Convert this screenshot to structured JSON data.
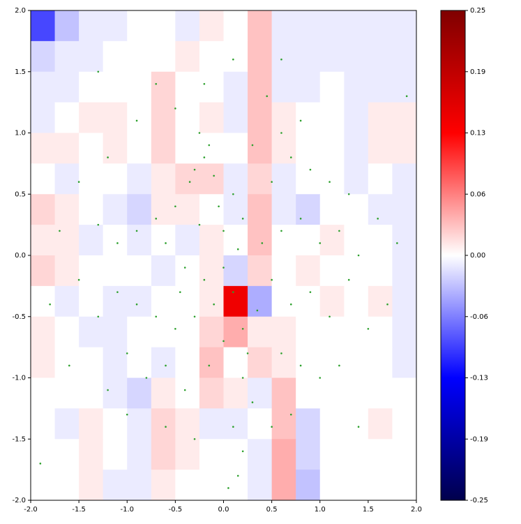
{
  "chart_data": {
    "type": "heatmap",
    "xlim": [
      -2,
      2
    ],
    "ylim": [
      -2,
      2
    ],
    "xticks": [
      {
        "value": -2,
        "label": "-2.0"
      },
      -1.5,
      {
        "value": -1,
        "label": "-1.0"
      },
      -0.5,
      {
        "value": 0,
        "label": "0.0"
      },
      0.5,
      {
        "value": 1,
        "label": "1.0"
      },
      1.5,
      {
        "value": 2,
        "label": "2.0"
      }
    ],
    "yticks": [
      {
        "value": -2,
        "label": "-2.0"
      },
      -1.5,
      {
        "value": -1,
        "label": "-1.0"
      },
      -0.5,
      {
        "value": 0,
        "label": "0.0"
      },
      0.5,
      {
        "value": 1,
        "label": "1.0"
      },
      1.5,
      {
        "value": 2,
        "label": "2.0"
      }
    ],
    "zlim": [
      -0.25,
      0.25
    ],
    "zticks": [
      0.25,
      {
        "value": 0.1875,
        "label": "0.19"
      },
      {
        "value": 0.125,
        "label": "0.13"
      },
      {
        "value": 0.0625,
        "label": "0.06"
      },
      {
        "value": 0,
        "label": "0.00"
      },
      {
        "value": -0.0625,
        "label": "-0.06"
      },
      {
        "value": -0.125,
        "label": "-0.13"
      },
      {
        "value": -0.1875,
        "label": "-0.19"
      },
      -0.25
    ],
    "x": [
      -1.875,
      -1.625,
      -1.375,
      -1.125,
      -0.875,
      -0.625,
      -0.375,
      -0.125,
      0.125,
      0.375,
      0.625,
      0.875,
      1.125,
      1.375,
      1.625,
      1.875
    ],
    "y": [
      1.875,
      1.625,
      1.375,
      1.125,
      0.875,
      0.625,
      0.375,
      0.125,
      -0.125,
      -0.375,
      -0.625,
      -0.875,
      -1.125,
      -1.375,
      -1.625,
      -1.875
    ],
    "z": [
      [
        -0.09,
        -0.03,
        -0.01,
        -0.01,
        0,
        0,
        -0.01,
        0.01,
        0,
        0.03,
        -0.01,
        -0.01,
        -0.01,
        -0.01,
        -0.01,
        -0.01
      ],
      [
        -0.02,
        -0.01,
        -0.01,
        0,
        0,
        0,
        0.01,
        0,
        0,
        0.03,
        -0.01,
        -0.01,
        -0.01,
        -0.01,
        -0.01,
        -0.01
      ],
      [
        -0.01,
        -0.01,
        0,
        0,
        0,
        0.02,
        0,
        0,
        -0.01,
        0.03,
        -0.01,
        -0.01,
        0,
        -0.01,
        -0.01,
        -0.01
      ],
      [
        -0.01,
        0,
        0.01,
        0.01,
        0,
        0.02,
        0,
        0.01,
        -0.01,
        0.03,
        0.01,
        0,
        0,
        -0.01,
        0.01,
        0.01
      ],
      [
        0.01,
        0.01,
        0,
        0.01,
        0,
        0.02,
        0,
        0,
        0,
        0.03,
        0.01,
        0,
        0,
        -0.01,
        0.01,
        0.01
      ],
      [
        0,
        -0.01,
        0,
        0,
        -0.01,
        0.01,
        0.02,
        0.02,
        -0.01,
        0.02,
        -0.01,
        0,
        0,
        -0.01,
        0,
        -0.01
      ],
      [
        0.02,
        0.01,
        0,
        -0.01,
        -0.02,
        0.01,
        0.01,
        0,
        -0.01,
        0.03,
        -0.01,
        -0.02,
        0,
        0,
        -0.01,
        -0.01
      ],
      [
        0.01,
        0.01,
        -0.01,
        0,
        -0.01,
        0,
        -0.01,
        0.01,
        0,
        0.03,
        0,
        0,
        0.01,
        0,
        0,
        -0.01
      ],
      [
        0.02,
        0.01,
        0,
        0,
        0,
        -0.01,
        0,
        0.01,
        -0.02,
        0.02,
        0,
        0.01,
        0,
        0,
        0,
        -0.01
      ],
      [
        0,
        -0.01,
        0,
        -0.01,
        -0.01,
        0,
        0,
        0.01,
        0.14,
        -0.04,
        0,
        0,
        0.01,
        0,
        0.01,
        -0.01
      ],
      [
        0.01,
        0,
        -0.01,
        -0.01,
        0,
        0,
        0,
        0.02,
        0.04,
        0.01,
        0.01,
        0,
        0,
        0,
        0,
        -0.01
      ],
      [
        0.01,
        0,
        0,
        -0.01,
        0,
        -0.01,
        0,
        0.03,
        0,
        0.02,
        0.01,
        0,
        0,
        0,
        0,
        -0.01
      ],
      [
        0,
        0,
        0,
        -0.01,
        -0.02,
        0.01,
        0,
        0.02,
        0.01,
        -0.01,
        0.03,
        0,
        0,
        0,
        0,
        0
      ],
      [
        0,
        -0.01,
        0.01,
        0,
        -0.01,
        0.02,
        0.01,
        -0.01,
        -0.01,
        0,
        0.03,
        -0.02,
        0,
        0,
        0.01,
        0
      ],
      [
        0,
        0,
        0.01,
        0,
        -0.01,
        0.02,
        0.01,
        0,
        0,
        -0.01,
        0.04,
        -0.02,
        0,
        0,
        0,
        0
      ],
      [
        0,
        0,
        0.01,
        -0.01,
        -0.01,
        0.01,
        0,
        0,
        0,
        -0.01,
        0.04,
        -0.03,
        0,
        0,
        0,
        0
      ]
    ],
    "points": {
      "color": "#2ca02c",
      "x": [
        -0.2,
        -0.3,
        -0.15,
        -0.25,
        -0.1,
        -0.35,
        0.1,
        0.2,
        -0.5,
        -0.7,
        -0.9,
        -1.1,
        -1.3,
        -0.6,
        -0.4,
        -0.2,
        0,
        0.1,
        -0.1,
        -0.3,
        -0.5,
        -0.7,
        -0.9,
        -1.1,
        -1.3,
        -1.5,
        -0.6,
        -0.4,
        -0.8,
        -1.0,
        0.2,
        0.25,
        0.2,
        0.3,
        0.1,
        0.2,
        0.15,
        0.05,
        0.4,
        0.6,
        0.8,
        1.0,
        1.2,
        1.4,
        1.6,
        0.5,
        0.7,
        0.9,
        1.1,
        1.3,
        0.6,
        0.8,
        0.45,
        0.3,
        -0.5,
        -0.9,
        -1.2,
        -1.5,
        -0.7,
        -0.2,
        0.1,
        -1.3,
        0.5,
        0.7,
        0.9,
        1.1,
        1.3,
        1.5,
        0.6,
        0.8,
        1.0,
        1.2,
        0.5,
        0.7,
        -0.3,
        -0.6,
        -1.0,
        -1.2,
        -1.6,
        -1.8,
        -1.7,
        1.8,
        1.7,
        0.0,
        -0.05,
        0.15,
        -0.25,
        -0.45,
        0.35,
        0.0,
        -0.15,
        1.9,
        -1.9,
        0.6,
        1.4
      ],
      "y": [
        0.8,
        0.7,
        0.9,
        1.0,
        0.65,
        0.6,
        0.5,
        0.3,
        0.4,
        0.3,
        0.2,
        0.1,
        0.25,
        0.1,
        -0.1,
        -0.2,
        -0.1,
        -0.3,
        -0.4,
        -0.5,
        -0.6,
        -0.5,
        -0.4,
        -0.3,
        -0.5,
        -0.2,
        -0.9,
        -1.1,
        -1.0,
        -0.8,
        -0.6,
        -0.8,
        -1.0,
        -1.2,
        -1.4,
        -1.6,
        -1.8,
        -1.9,
        0.1,
        0.2,
        0.3,
        0.1,
        0.2,
        0.0,
        0.3,
        0.6,
        0.8,
        0.7,
        0.6,
        0.5,
        1.0,
        1.1,
        1.3,
        0.9,
        1.2,
        1.1,
        0.8,
        0.6,
        1.4,
        1.4,
        1.6,
        1.5,
        -0.2,
        -0.4,
        -0.3,
        -0.5,
        -0.2,
        -0.6,
        -0.8,
        -0.9,
        -1.0,
        -0.9,
        -1.4,
        -1.3,
        -1.5,
        -1.4,
        -1.3,
        -1.1,
        -0.9,
        -0.4,
        0.2,
        0.1,
        -0.4,
        0.2,
        0.4,
        0.05,
        0.25,
        -0.3,
        -0.45,
        -0.7,
        -0.9,
        1.3,
        -1.7,
        1.6,
        -1.4
      ]
    }
  }
}
